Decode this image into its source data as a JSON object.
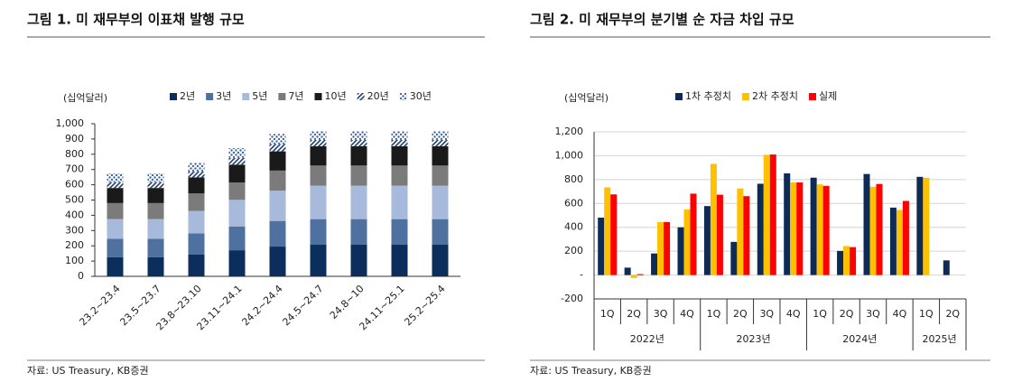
{
  "chart_data": [
    {
      "type": "stacked_bar",
      "title": "그림 1. 미 재무부의 이표채 발행 규모",
      "unit": "(십억달러)",
      "source": "자료: US Treasury, KB증권",
      "categories": [
        "23.2~23.4",
        "23.5~23.7",
        "23.8~23.10",
        "23.11~24.1",
        "24.2~24.4",
        "24.5~24.7",
        "24.8~10",
        "24.11~25.1",
        "25.2~25.4"
      ],
      "series": [
        {
          "name": "2년",
          "color": "#0b2e5c",
          "values": [
            126,
            126,
            144,
            171,
            195,
            207,
            207,
            207,
            207
          ]
        },
        {
          "name": "3년",
          "color": "#4e71a0",
          "values": [
            120,
            120,
            138,
            156,
            168,
            168,
            168,
            168,
            168
          ]
        },
        {
          "name": "5년",
          "color": "#a7badb",
          "values": [
            129,
            129,
            147,
            174,
            198,
            219,
            219,
            219,
            219
          ]
        },
        {
          "name": "7년",
          "color": "#7b7b7b",
          "values": [
            105,
            105,
            114,
            114,
            132,
            132,
            132,
            132,
            132
          ]
        },
        {
          "name": "10년",
          "color": "#1a1a1a",
          "values": [
            99,
            99,
            105,
            117,
            126,
            126,
            126,
            126,
            126
          ]
        },
        {
          "name": "20년",
          "color": "#1f3f75",
          "pattern": "diagonal",
          "values": [
            39,
            39,
            39,
            45,
            48,
            42,
            42,
            42,
            42
          ]
        },
        {
          "name": "30년",
          "color": "#3f65a3",
          "pattern": "dots",
          "values": [
            57,
            57,
            57,
            63,
            66,
            57,
            57,
            57,
            57
          ]
        }
      ],
      "ylim": [
        0,
        1000
      ],
      "yticks": [
        0,
        100,
        200,
        300,
        400,
        500,
        600,
        700,
        800,
        900,
        {
          "value": 1000,
          "label": "1,000"
        }
      ],
      "grid": false
    },
    {
      "type": "bar",
      "title": "그림 2. 미 재무부의 분기별 순 자금 차입 규모",
      "unit": "(십억달러)",
      "source": "자료: US Treasury, KB증권",
      "categories": [
        "1Q",
        "2Q",
        "3Q",
        "4Q",
        "1Q",
        "2Q",
        "3Q",
        "4Q",
        "1Q",
        "2Q",
        "3Q",
        "4Q",
        "1Q",
        "2Q"
      ],
      "x_groups": [
        "2022년",
        "2023년",
        "2024년",
        "2025년"
      ],
      "series": [
        {
          "name": "1차 추정치",
          "color": "#0d2b55",
          "values": [
            481,
            62,
            181,
            400,
            578,
            278,
            765,
            852,
            816,
            202,
            847,
            565,
            823,
            123
          ]
        },
        {
          "name": "2차 추정치",
          "color": "#ffc000",
          "values": [
            735,
            -25,
            444,
            550,
            932,
            726,
            1007,
            776,
            760,
            243,
            740,
            546,
            815,
            null
          ]
        },
        {
          "name": "실제",
          "color": "#ff0000",
          "values": [
            676,
            8,
            444,
            682,
            673,
            661,
            1010,
            776,
            747,
            234,
            763,
            621,
            null,
            null
          ]
        }
      ],
      "ylim": [
        -200,
        1200
      ],
      "yticks": [
        -200,
        {
          "value": 0,
          "label": "-"
        },
        200,
        400,
        600,
        800,
        {
          "value": 1000,
          "label": "1,000"
        },
        {
          "value": 1200,
          "label": "1,200"
        }
      ],
      "grid": true
    }
  ]
}
